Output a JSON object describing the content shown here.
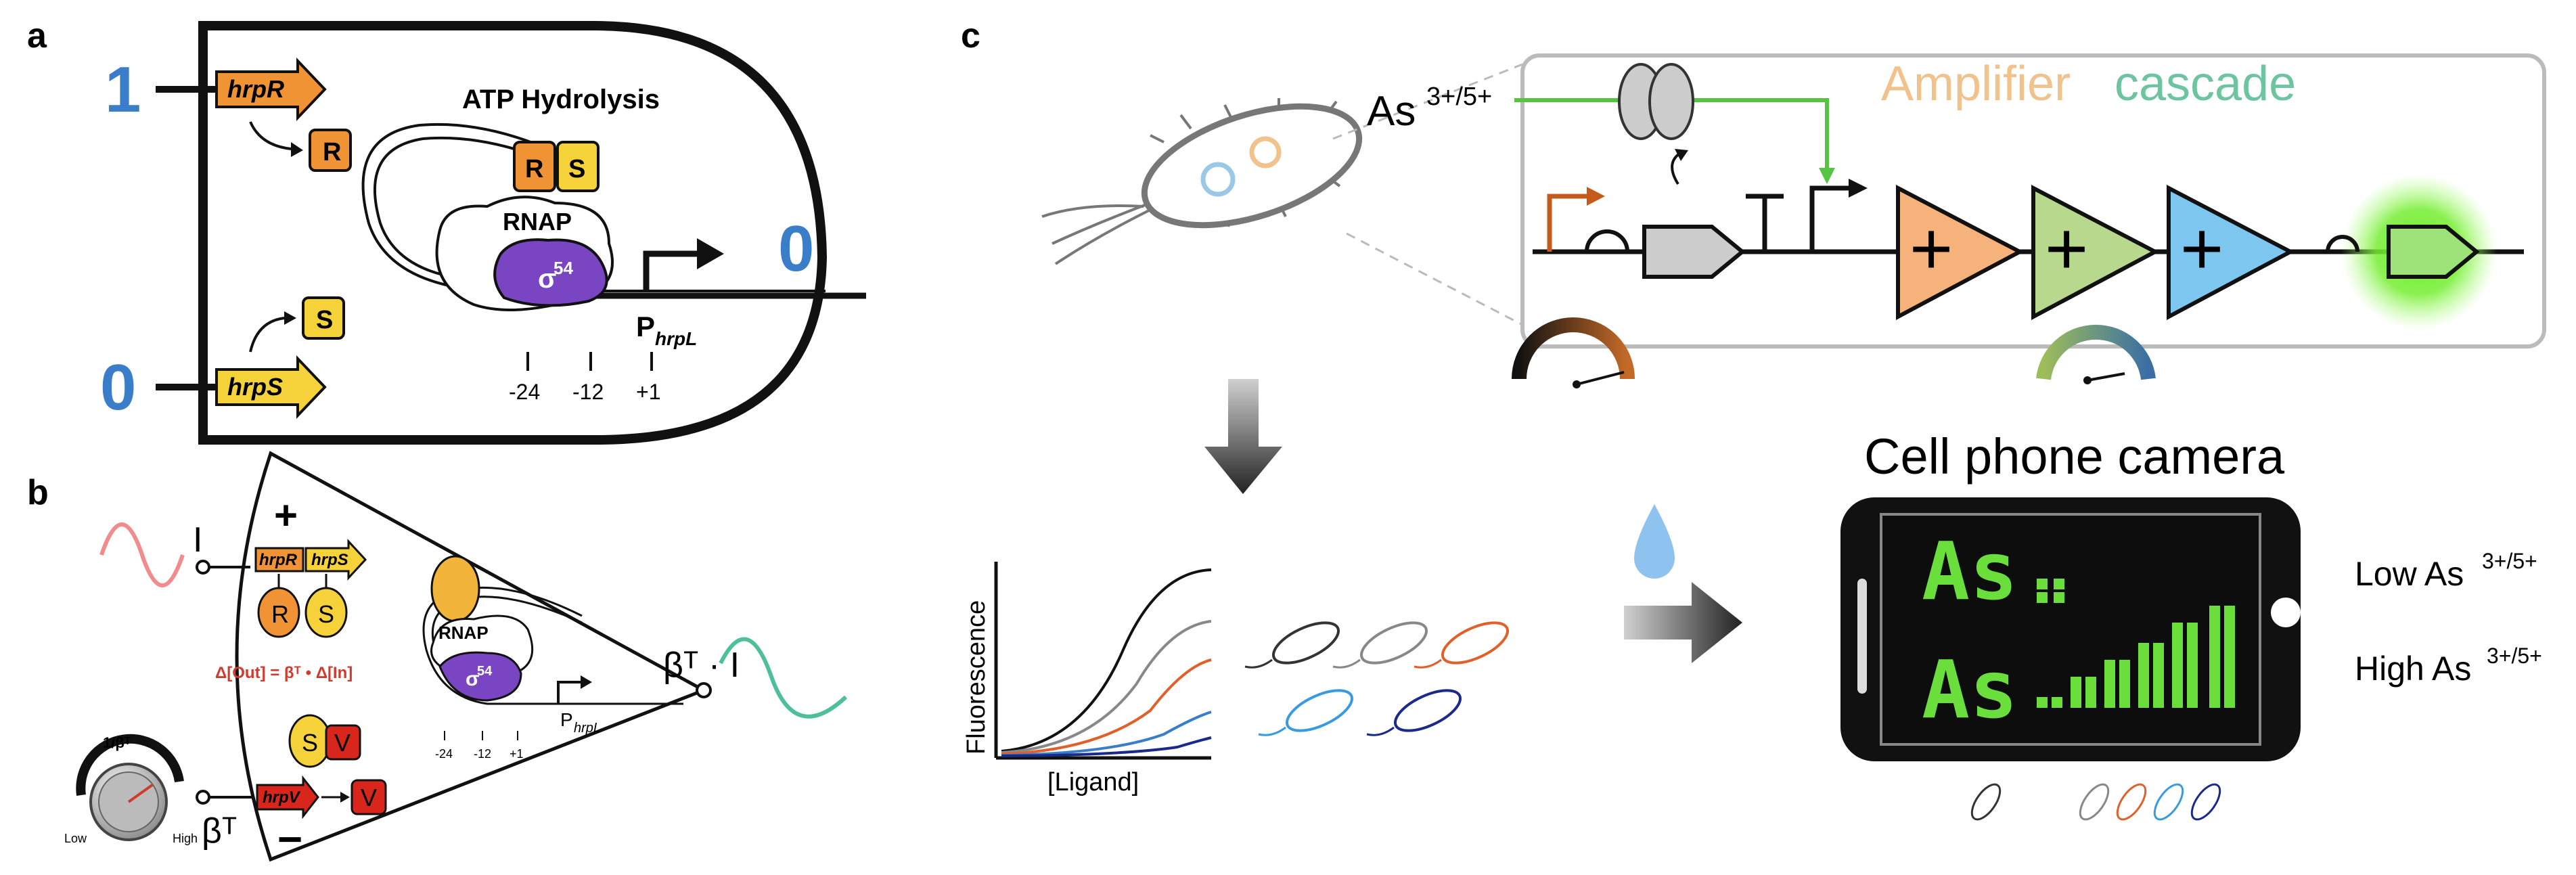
{
  "panel_a": {
    "letter": "a",
    "input_top": "1",
    "input_bottom": "0",
    "output": "0",
    "gene_top": "hrpR",
    "gene_bottom": "hrpS",
    "protein_r": "R",
    "protein_s": "S",
    "process": "ATP Hydrolysis",
    "rnap": "RNAP",
    "sigma": "σ",
    "sigma_sup": "54",
    "promoter": "P",
    "promoter_sub": "hrpL",
    "pos_1": "-24",
    "pos_2": "-12",
    "pos_3": "+1"
  },
  "panel_b": {
    "letter": "b",
    "input_i": "I",
    "plus": "+",
    "minus": "−",
    "gene_r": "hrpR",
    "gene_s": "hrpS",
    "gene_v": "hrpV",
    "protein_r": "R",
    "protein_s": "S",
    "protein_v": "V",
    "equation": "Δ[Out] = βᵀ • Δ[In]",
    "rnap": "RNAP",
    "sigma": "σ",
    "sigma_sup": "54",
    "promoter": "P",
    "promoter_sub": "hrpL",
    "pos_1": "-24",
    "pos_2": "-12",
    "pos_3": "+1",
    "knob_label": "1/βᵀ",
    "knob_low": "Low",
    "knob_high": "High",
    "beta_input": "βᵀ",
    "output": "βᵀ · I",
    "colors": {
      "input_wave": "#f28b8b",
      "output_wave": "#4dbf9a"
    }
  },
  "panel_c": {
    "letter": "c",
    "arsenic": "As",
    "arsenic_sup": "3+/5+",
    "amplifier_word1": "Amplifier",
    "amplifier_word2": "cascade",
    "amp_sign": "+",
    "fluorescence_label": "Fluorescence",
    "ligand_label": "[Ligand]",
    "phone_title": "Cell phone camera",
    "low_label": "Low As",
    "low_sup": "3+/5+",
    "high_label": "High As",
    "high_sup": "3+/5+",
    "screen_text": "As",
    "colors": {
      "amp_orange": "#f5b27a",
      "amp_green": "#b8d88e",
      "amp_blue": "#7dc6ef",
      "gfp_glow": "#66dd33",
      "screen_text": "#6adf3c"
    }
  }
}
